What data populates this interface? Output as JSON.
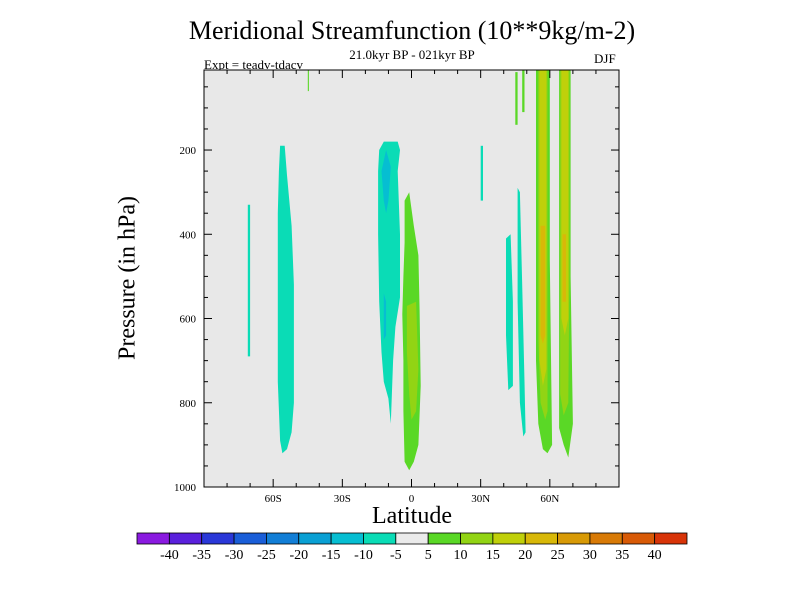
{
  "chart_data": {
    "type": "heatmap",
    "title": "Meridional Streamfunction (10**9kg/m-2)",
    "subtitle": "21.0kyr BP - 021kyr BP",
    "left_annotation": "Expt = teadv-tdacv",
    "right_annotation": "DJF",
    "xlabel": "Latitude",
    "ylabel": "Pressure (in hPa)",
    "xlim": [
      -90,
      90
    ],
    "ylim": [
      1000,
      10
    ],
    "x_ticks": [
      {
        "value": -60,
        "label": "60S"
      },
      {
        "value": -30,
        "label": "30S"
      },
      {
        "value": 0,
        "label": "0"
      },
      {
        "value": 30,
        "label": "30N"
      },
      {
        "value": 60,
        "label": "60N"
      }
    ],
    "y_ticks": [
      {
        "value": 200,
        "label": "200"
      },
      {
        "value": 400,
        "label": "400"
      },
      {
        "value": 600,
        "label": "600"
      },
      {
        "value": 800,
        "label": "800"
      },
      {
        "value": 1000,
        "label": "1000"
      }
    ],
    "colorbar": {
      "labels": [
        "-40",
        "-35",
        "-30",
        "-25",
        "-20",
        "-15",
        "-10",
        "-5",
        "5",
        "10",
        "15",
        "20",
        "25",
        "30",
        "35",
        "40"
      ],
      "colors": [
        "#8a1ae0",
        "#5a20dc",
        "#2a38d8",
        "#1a5ed8",
        "#127ed6",
        "#0aa0d4",
        "#06bed2",
        "#0adcb6",
        "#ebebeb",
        "#5ad826",
        "#92d414",
        "#c0d00a",
        "#d8b808",
        "#d89a06",
        "#d87a06",
        "#d85a06",
        "#d83408"
      ]
    },
    "background_color": "#e8e8e8",
    "regions": [
      {
        "color": "#0adcb6",
        "points": [
          [
            -71,
            330
          ],
          [
            -70,
            330
          ],
          [
            -70,
            690
          ],
          [
            -71,
            690
          ]
        ]
      },
      {
        "color": "#0adcb6",
        "points": [
          [
            -57,
            190
          ],
          [
            -55,
            190
          ],
          [
            -54,
            260
          ],
          [
            -52,
            380
          ],
          [
            -51,
            520
          ],
          [
            -51,
            800
          ],
          [
            -52,
            870
          ],
          [
            -54,
            910
          ],
          [
            -56,
            920
          ],
          [
            -57,
            890
          ],
          [
            -58,
            750
          ],
          [
            -58,
            350
          ],
          [
            -57.5,
            250
          ]
        ]
      },
      {
        "color": "#0adcb6",
        "points": [
          [
            -14,
            200
          ],
          [
            -12,
            180
          ],
          [
            -6,
            180
          ],
          [
            -5,
            200
          ],
          [
            -6,
            250
          ],
          [
            -5,
            400
          ],
          [
            -5,
            550
          ],
          [
            -7,
            620
          ],
          [
            -8,
            700
          ],
          [
            -9,
            850
          ],
          [
            -10,
            790
          ],
          [
            -12,
            750
          ],
          [
            -13,
            680
          ],
          [
            -14,
            560
          ],
          [
            -14.5,
            400
          ],
          [
            -14.5,
            250
          ]
        ]
      },
      {
        "color": "#06bed2",
        "points": [
          [
            -13,
            250
          ],
          [
            -11,
            200
          ],
          [
            -9,
            240
          ],
          [
            -10,
            320
          ],
          [
            -11,
            350
          ],
          [
            -12,
            320
          ]
        ]
      },
      {
        "color": "#06bed2",
        "points": [
          [
            -12,
            540
          ],
          [
            -11,
            560
          ],
          [
            -11,
            640
          ],
          [
            -12,
            650
          ]
        ]
      },
      {
        "color": "#0adcb6",
        "points": [
          [
            30,
            190
          ],
          [
            31,
            190
          ],
          [
            31,
            320
          ],
          [
            30,
            320
          ]
        ]
      },
      {
        "color": "#0adcb6",
        "points": [
          [
            41,
            410
          ],
          [
            43,
            400
          ],
          [
            44,
            560
          ],
          [
            44,
            760
          ],
          [
            42,
            770
          ],
          [
            41,
            640
          ]
        ]
      },
      {
        "color": "#0adcb6",
        "points": [
          [
            46,
            290
          ],
          [
            47,
            300
          ],
          [
            48,
            520
          ],
          [
            49,
            750
          ],
          [
            49.5,
            870
          ],
          [
            48.5,
            880
          ],
          [
            47,
            800
          ],
          [
            46,
            560
          ]
        ]
      },
      {
        "color": "#5ad826",
        "points": [
          [
            45,
            15
          ],
          [
            46,
            15
          ],
          [
            46,
            140
          ],
          [
            45,
            140
          ]
        ]
      },
      {
        "color": "#5ad826",
        "points": [
          [
            48,
            10
          ],
          [
            49,
            10
          ],
          [
            49,
            110
          ],
          [
            48,
            110
          ]
        ]
      },
      {
        "color": "#5ad826",
        "points": [
          [
            -45,
            10
          ],
          [
            -44.5,
            10
          ],
          [
            -44.5,
            60
          ],
          [
            -45,
            60
          ]
        ]
      },
      {
        "color": "#5ad826",
        "points": [
          [
            -3,
            320
          ],
          [
            -1,
            300
          ],
          [
            1,
            380
          ],
          [
            3,
            450
          ],
          [
            3.5,
            580
          ],
          [
            4,
            760
          ],
          [
            3,
            900
          ],
          [
            1,
            940
          ],
          [
            -1,
            960
          ],
          [
            -3,
            940
          ],
          [
            -3.5,
            820
          ],
          [
            -3.5,
            700
          ],
          [
            -4,
            590
          ],
          [
            -3.5,
            500
          ],
          [
            -3,
            420
          ]
        ]
      },
      {
        "color": "#92d414",
        "points": [
          [
            -2,
            570
          ],
          [
            2,
            560
          ],
          [
            3,
            720
          ],
          [
            2,
            820
          ],
          [
            0,
            840
          ],
          [
            -1,
            780
          ],
          [
            -2,
            680
          ]
        ]
      },
      {
        "color": "#5ad826",
        "points": [
          [
            54,
            10
          ],
          [
            60,
            10
          ],
          [
            60,
            460
          ],
          [
            61,
            900
          ],
          [
            59,
            920
          ],
          [
            57,
            910
          ],
          [
            55,
            850
          ],
          [
            54,
            700
          ],
          [
            54,
            400
          ]
        ]
      },
      {
        "color": "#92d414",
        "points": [
          [
            55,
            10
          ],
          [
            59,
            10
          ],
          [
            59,
            450
          ],
          [
            59,
            820
          ],
          [
            58,
            840
          ],
          [
            56,
            800
          ],
          [
            55,
            650
          ]
        ]
      },
      {
        "color": "#c0d00a",
        "points": [
          [
            55.5,
            10
          ],
          [
            58.5,
            10
          ],
          [
            58.5,
            720
          ],
          [
            57,
            760
          ],
          [
            55.5,
            700
          ]
        ]
      },
      {
        "color": "#d8b808",
        "points": [
          [
            56,
            380
          ],
          [
            58,
            380
          ],
          [
            58,
            640
          ],
          [
            57,
            660
          ],
          [
            56,
            640
          ]
        ]
      },
      {
        "color": "#5ad826",
        "points": [
          [
            64,
            10
          ],
          [
            69,
            10
          ],
          [
            69,
            500
          ],
          [
            70,
            850
          ],
          [
            68,
            930
          ],
          [
            66,
            900
          ],
          [
            64,
            860
          ],
          [
            64,
            500
          ]
        ]
      },
      {
        "color": "#92d414",
        "points": [
          [
            64.5,
            10
          ],
          [
            68.5,
            10
          ],
          [
            68.5,
            500
          ],
          [
            68,
            800
          ],
          [
            66,
            830
          ],
          [
            64.5,
            780
          ]
        ]
      },
      {
        "color": "#c0d00a",
        "points": [
          [
            65,
            10
          ],
          [
            68,
            10
          ],
          [
            68,
            600
          ],
          [
            66.5,
            640
          ],
          [
            65,
            600
          ]
        ]
      },
      {
        "color": "#d8b808",
        "points": [
          [
            65.5,
            400
          ],
          [
            67,
            400
          ],
          [
            67,
            560
          ],
          [
            65.5,
            560
          ]
        ]
      }
    ]
  }
}
